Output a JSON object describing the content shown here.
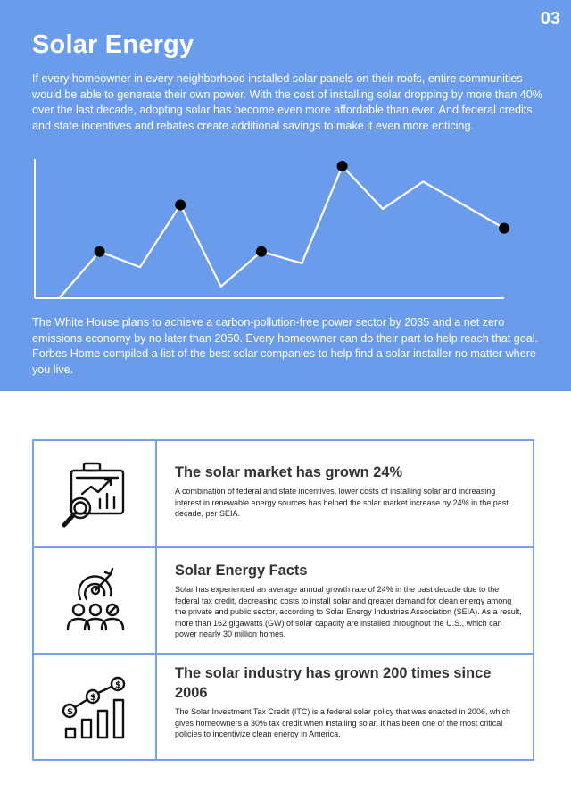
{
  "page_number": "03",
  "title": "Solar Energy",
  "intro": "If every homeowner in every neighborhood installed solar panels on their roofs, entire communities would be able to generate their own power. With the cost of installing solar dropping by more than 40% over the last decade, adopting solar has become even more affordable than ever. And federal credits and state incentives and rebates create additional savings to make it even more enticing.",
  "closing": "The White House plans to achieve a carbon-pollution-free power sector by 2035 and a net zero emissions economy by no later than 2050. Every homeowner can do their part to help reach that goal. Forbes Home compiled a list of the best solar companies to help find a solar installer no matter where you live.",
  "chart_data": {
    "type": "line",
    "grid": false,
    "legend": "none",
    "line_color": "#ffffff",
    "marker_color": "#000000",
    "x": [
      0,
      1,
      2,
      3,
      4,
      5,
      6,
      7,
      8,
      9,
      10,
      11
    ],
    "y": [
      0,
      6,
      4,
      12,
      1.5,
      6,
      4.5,
      17,
      11.5,
      15,
      12,
      9
    ],
    "markers": [
      1,
      3,
      5,
      7,
      11
    ],
    "xlim": [
      -0.6,
      11
    ],
    "ylim": [
      0,
      17
    ]
  },
  "facts": [
    {
      "icon": "market-analysis-icon",
      "title": "The solar market has grown 24%",
      "text": "A combination of federal and state incentives, lower costs of installing solar and increasing interest in renewable energy sources has helped the solar market increase by 24% in the past decade, per SEIA."
    },
    {
      "icon": "target-team-icon",
      "title": "Solar Energy Facts",
      "text": "Solar has experienced an average annual growth rate of 24% in the past decade due to the federal tax credit, decreasing costs to install solar and greater demand for clean energy among the private and public sector, according to Solar Energy Industries Association (SEIA). As a result, more than 162 gigawatts (GW) of solar capacity are installed throughout the U.S., which can power nearly 30 million homes."
    },
    {
      "icon": "money-growth-icon",
      "title": "The solar industry has grown 200 times since 2006",
      "text": "The Solar Investment Tax Credit (ITC) is a federal solar policy that was enacted in 2006, which gives homeowners a 30% tax credit when installing solar. It has been one of the most critical policies to incentivize clean energy in America."
    }
  ]
}
